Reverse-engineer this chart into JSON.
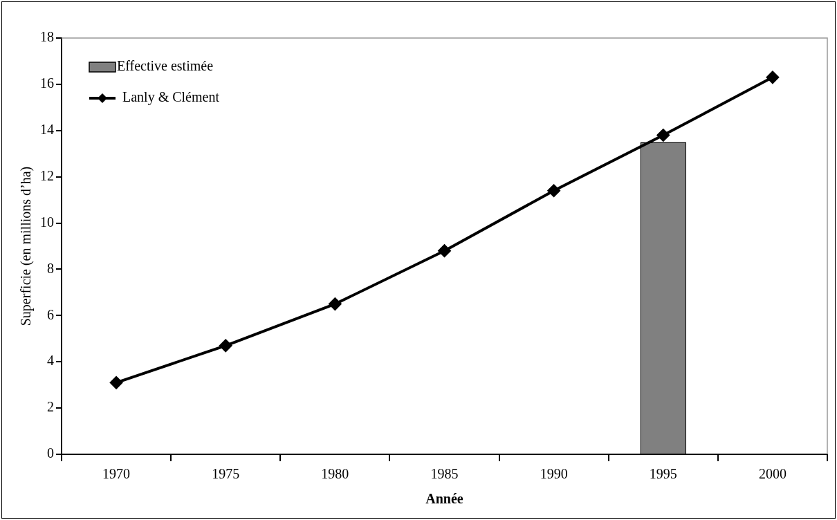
{
  "chart_data": {
    "type": "bar",
    "xlabel": "Année",
    "ylabel": "Superficie (en millions d’ha)",
    "categories": [
      "1970",
      "1975",
      "1980",
      "1985",
      "1990",
      "1995",
      "2000"
    ],
    "series": [
      {
        "name": "Effective estimée",
        "color": "#808080",
        "values": [
          null,
          null,
          null,
          null,
          null,
          13.5,
          null
        ]
      },
      {
        "name": "Lanly & Clément",
        "type": "line",
        "color": "#000000",
        "values": [
          3.1,
          4.7,
          6.5,
          8.8,
          11.4,
          13.8,
          16.3
        ]
      }
    ],
    "ylim": [
      0,
      18
    ],
    "yticks": [
      0,
      2,
      4,
      6,
      8,
      10,
      12,
      14,
      16,
      18
    ],
    "grid": false,
    "legend": "top left",
    "marker": "diamond",
    "line_style": "solid"
  }
}
